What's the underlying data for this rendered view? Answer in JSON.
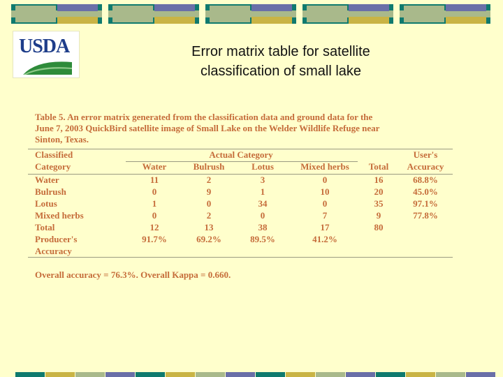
{
  "slide": {
    "title_line1": "Error matrix table for satellite",
    "title_line2": "classification of small lake",
    "logo_text": "USDA"
  },
  "colors": {
    "background": "#ffffcc",
    "table_text": "#c56c3a",
    "bar_teal": "#0f7a6e",
    "bar_blue": "#6a6fa8",
    "bar_gold": "#c9b445",
    "bar_sage": "#a9b98b"
  },
  "table": {
    "caption_line1": "Table 5.  An error matrix generated from the classification data and ground data for the",
    "caption_line2": "June 7, 2003 QuickBird satellite image of Small Lake on the Welder Wildlife Refuge near",
    "caption_line3": "Sinton, Texas.",
    "classified_line1": "Classified",
    "classified_line2": "Category",
    "actual_category": "Actual Category",
    "users_line1": "User's",
    "users_line2": "Accuracy",
    "col_headers": [
      "Water",
      "Bulrush",
      "Lotus",
      "Mixed herbs",
      "Total"
    ],
    "rows": [
      {
        "label": "Water",
        "values": [
          "11",
          "2",
          "3",
          "0",
          "16",
          "68.8%"
        ]
      },
      {
        "label": "Bulrush",
        "values": [
          "0",
          "9",
          "1",
          "10",
          "20",
          "45.0%"
        ]
      },
      {
        "label": "Lotus",
        "values": [
          "1",
          "0",
          "34",
          "0",
          "35",
          "97.1%"
        ]
      },
      {
        "label": "Mixed herbs",
        "values": [
          "0",
          "2",
          "0",
          "7",
          "9",
          "77.8%"
        ]
      }
    ],
    "total_row": {
      "label": "Total",
      "values": [
        "12",
        "13",
        "38",
        "17",
        "80"
      ]
    },
    "producers_line1": "Producer's",
    "producers_line2": "Accuracy",
    "producers_values": [
      "91.7%",
      "69.2%",
      "89.5%",
      "41.2%"
    ],
    "footnote": "Overall accuracy = 76.3%.  Overall Kappa = 0.660."
  }
}
